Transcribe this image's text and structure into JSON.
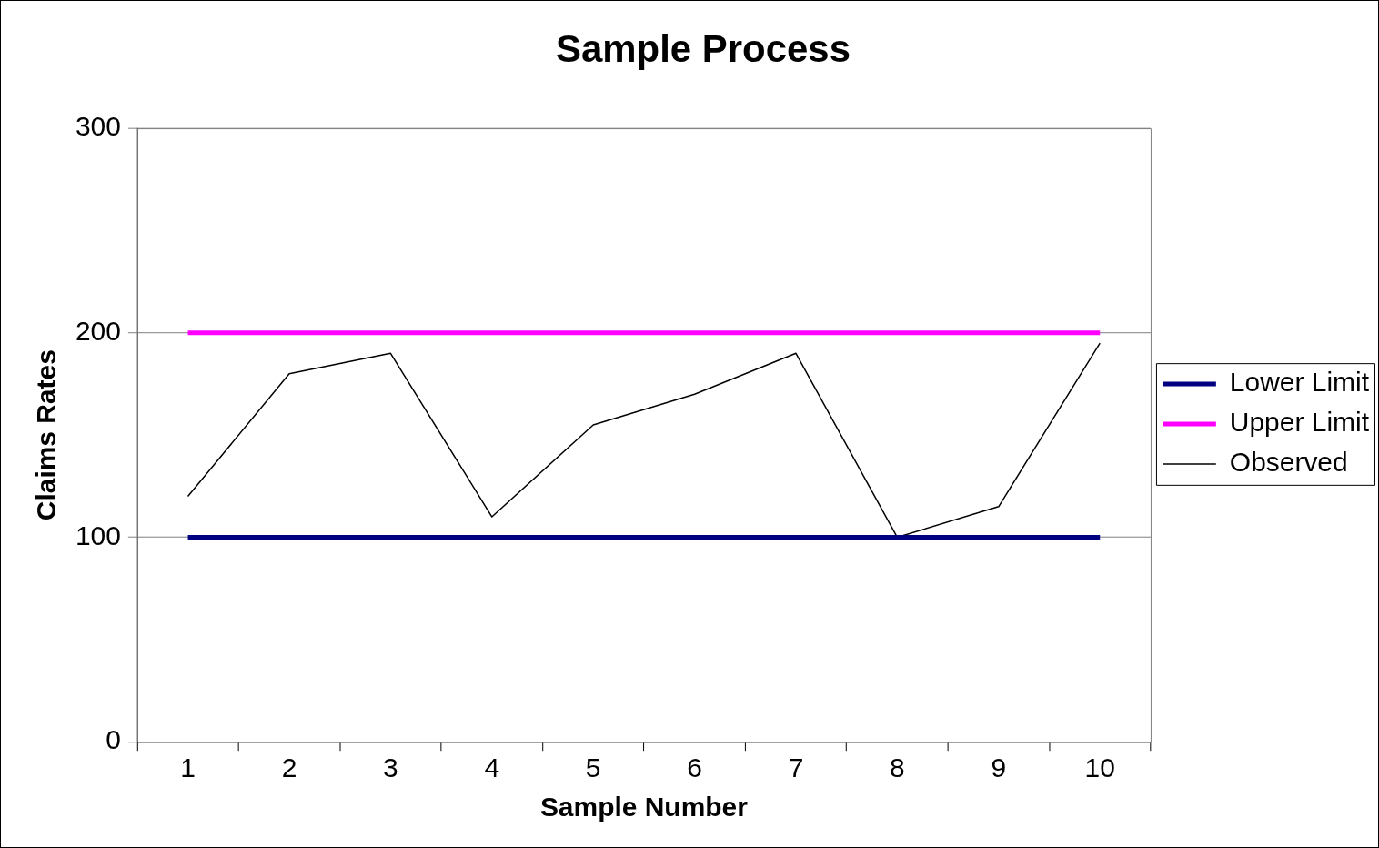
{
  "chart_data": {
    "type": "line",
    "title": "Sample Process",
    "xlabel": "Sample Number",
    "ylabel": "Claims Rates",
    "categories": [
      "1",
      "2",
      "3",
      "4",
      "5",
      "6",
      "7",
      "8",
      "9",
      "10"
    ],
    "series": [
      {
        "name": "Lower Limit",
        "color": "#000080",
        "values": [
          100,
          100,
          100,
          100,
          100,
          100,
          100,
          100,
          100,
          100
        ]
      },
      {
        "name": "Upper Limit",
        "color": "#ff00ff",
        "values": [
          200,
          200,
          200,
          200,
          200,
          200,
          200,
          200,
          200,
          200
        ]
      },
      {
        "name": "Observed",
        "color": "#000000",
        "values": [
          120,
          180,
          190,
          110,
          155,
          170,
          190,
          100,
          115,
          195
        ]
      }
    ],
    "ylim": [
      0,
      300
    ],
    "yticks": [
      0,
      100,
      200,
      300
    ],
    "grid": "y",
    "legend": "right",
    "marker": "none",
    "line_style": "solid"
  }
}
